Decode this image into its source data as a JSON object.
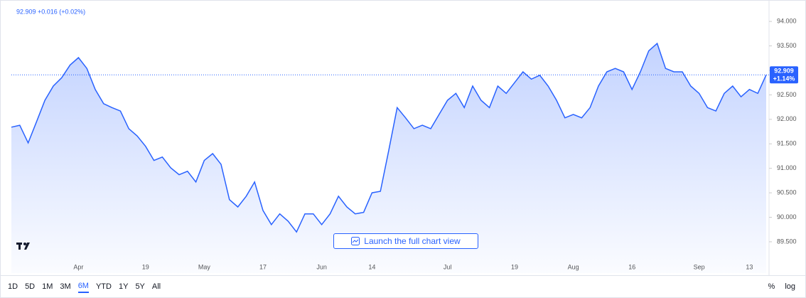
{
  "chart_data": {
    "type": "area",
    "header": "92.909 +0.016 (+0.02%)",
    "price_label": "92.909",
    "change_label": "+1.14%",
    "categories": [
      null,
      null,
      null,
      null,
      null,
      null,
      null,
      null,
      "Apr",
      null,
      null,
      null,
      null,
      null,
      null,
      null,
      "19",
      null,
      null,
      null,
      null,
      null,
      null,
      "May",
      null,
      null,
      null,
      null,
      null,
      null,
      "17",
      null,
      null,
      null,
      null,
      null,
      null,
      "Jun",
      null,
      null,
      null,
      null,
      null,
      "14",
      null,
      null,
      null,
      null,
      null,
      null,
      null,
      null,
      "Jul",
      null,
      null,
      null,
      null,
      null,
      null,
      null,
      "19",
      null,
      null,
      null,
      null,
      null,
      null,
      "Aug",
      null,
      null,
      null,
      null,
      null,
      null,
      "16",
      null,
      null,
      null,
      null,
      null,
      null,
      null,
      "Sep",
      null,
      null,
      null,
      null,
      null,
      "13",
      null,
      null
    ],
    "series": [
      {
        "color": "#2962ff",
        "values": [
          91.84,
          91.88,
          91.52,
          91.95,
          92.39,
          92.68,
          92.85,
          93.11,
          93.26,
          93.04,
          92.61,
          92.32,
          92.24,
          92.17,
          91.81,
          91.66,
          91.45,
          91.16,
          91.23,
          91.01,
          90.87,
          90.94,
          90.72,
          91.16,
          91.3,
          91.08,
          90.36,
          90.21,
          90.43,
          90.72,
          90.14,
          89.85,
          90.07,
          89.92,
          89.7,
          90.07,
          90.07,
          89.85,
          90.07,
          90.43,
          90.21,
          90.07,
          90.1,
          90.5,
          90.53,
          91.37,
          92.24,
          92.03,
          91.81,
          91.88,
          91.81,
          92.1,
          92.39,
          92.53,
          92.24,
          92.68,
          92.39,
          92.24,
          92.68,
          92.53,
          92.75,
          92.97,
          92.82,
          92.9,
          92.68,
          92.39,
          92.03,
          92.1,
          92.03,
          92.24,
          92.68,
          92.97,
          93.04,
          92.97,
          92.61,
          92.97,
          93.4,
          93.55,
          93.04,
          92.97,
          92.97,
          92.68,
          92.53,
          92.24,
          92.17,
          92.53,
          92.68,
          92.46,
          92.61,
          92.53,
          92.909
        ]
      }
    ],
    "ylim": [
      88.86,
      94.35
    ],
    "yticks": [
      {
        "value": 89.5,
        "label": "89.500"
      },
      {
        "value": 90,
        "label": "90.000"
      },
      {
        "value": 90.5,
        "label": "90.500"
      },
      {
        "value": 91,
        "label": "91.000"
      },
      {
        "value": 91.5,
        "label": "91.500"
      },
      {
        "value": 92,
        "label": "92.000"
      },
      {
        "value": 92.5,
        "label": "92.500"
      },
      {
        "value": 93,
        "label": "93.000"
      },
      {
        "value": 93.5,
        "label": "93.500"
      },
      {
        "value": 94,
        "label": "94.000"
      }
    ]
  },
  "launch_button": "Launch the full chart view",
  "toolbar": {
    "ranges": [
      "1D",
      "5D",
      "1M",
      "3M",
      "6M",
      "YTD",
      "1Y",
      "5Y",
      "All"
    ],
    "active": 4,
    "right": [
      "%",
      "log"
    ]
  }
}
